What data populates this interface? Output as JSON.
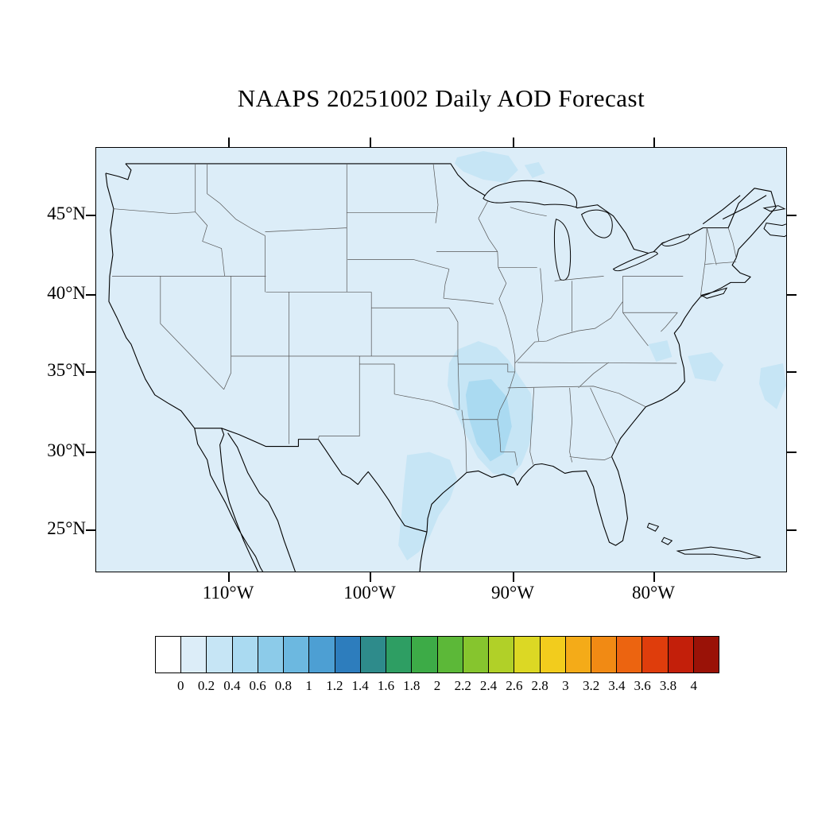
{
  "title": "NAAPS 20251002 Daily AOD Forecast",
  "map": {
    "y_axis_labels": [
      "45°N",
      "40°N",
      "35°N",
      "30°N",
      "25°N"
    ],
    "x_axis_labels": [
      "110°W",
      "100°W",
      "90°W",
      "80°W"
    ]
  },
  "colorbar": {
    "tick_labels": [
      "0",
      "0.2",
      "0.4",
      "0.6",
      "0.8",
      "1",
      "1.2",
      "1.4",
      "1.6",
      "1.8",
      "2",
      "2.2",
      "2.4",
      "2.6",
      "2.8",
      "3",
      "3.2",
      "3.4",
      "3.6",
      "3.8",
      "4"
    ],
    "colors": [
      "#ffffff",
      "#dcedf8",
      "#c6e5f5",
      "#aadaf1",
      "#8ccbe9",
      "#6cb8e0",
      "#4d9fd3",
      "#2d7dbd",
      "#2e8b8b",
      "#2e9e63",
      "#3dab47",
      "#5cb838",
      "#86c52e",
      "#b1d028",
      "#dcd824",
      "#f2cc1d",
      "#f4ab18",
      "#f18a14",
      "#ec6410",
      "#df3d0c",
      "#c31f0a",
      "#9a1207"
    ]
  },
  "chart_data": {
    "type": "heatmap",
    "title": "NAAPS 20251002 Daily AOD Forecast",
    "model": "NAAPS",
    "forecast_date": "20251002",
    "variable": "Daily AOD (Aerosol Optical Depth) Forecast",
    "region": "Continental United States with surrounding ocean, southern Canada and northern Mexico",
    "lat_ticks_deg_n": [
      45,
      40,
      35,
      30,
      25
    ],
    "lon_ticks_deg_w": [
      110,
      100,
      90,
      80
    ],
    "colorbar_scale": {
      "min": 0,
      "max": 4,
      "step": 0.2,
      "tick_values": [
        0,
        0.2,
        0.4,
        0.6,
        0.8,
        1,
        1.2,
        1.4,
        1.6,
        1.8,
        2,
        2.2,
        2.4,
        2.6,
        2.8,
        3,
        3.2,
        3.4,
        3.6,
        3.8,
        4
      ],
      "n_color_boxes": 22,
      "orientation": "horizontal",
      "position": "below map"
    },
    "field_summary": [
      {
        "area": "Most of CONUS and surrounding ocean",
        "aod_range": "0.0-0.2"
      },
      {
        "area": "East Texas Gulf coast, Louisiana, Arkansas, Mississippi (south-central US)",
        "aod_range": "0.2-0.6"
      },
      {
        "area": "Northern Minnesota / Lake Superior region",
        "aod_range": "0.2-0.4"
      },
      {
        "area": "Western Atlantic off Virginia/Carolinas and far eastern map edge",
        "aod_range": "0.2-0.4"
      }
    ],
    "grid": "off",
    "legend_position": "bottom horizontal labelbar"
  }
}
